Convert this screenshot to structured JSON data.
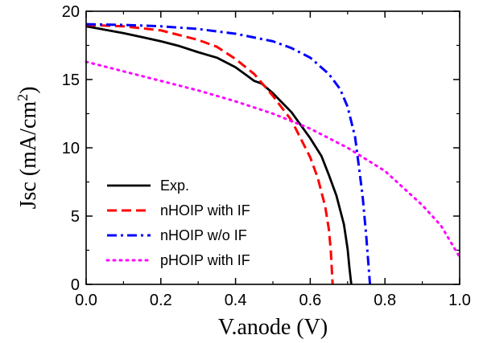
{
  "chart_data": {
    "type": "line",
    "xlabel": "V.anode (V)",
    "ylabel": "Jsc (mA/cm",
    "ylabel_sup": "2",
    "ylabel_close": ")",
    "xlim": [
      0.0,
      1.0
    ],
    "ylim": [
      0,
      20
    ],
    "x_ticks": [
      "0.0",
      "0.2",
      "0.4",
      "0.6",
      "0.8",
      "1.0"
    ],
    "y_ticks": [
      "0",
      "5",
      "10",
      "15",
      "20"
    ],
    "grid": false,
    "legend_position": "bottom-left",
    "series": [
      {
        "name": "Exp.",
        "color": "#000000",
        "style": "solid",
        "points": [
          [
            0.0,
            18.9
          ],
          [
            0.05,
            18.65
          ],
          [
            0.1,
            18.4
          ],
          [
            0.15,
            18.1
          ],
          [
            0.2,
            17.8
          ],
          [
            0.25,
            17.45
          ],
          [
            0.3,
            17.0
          ],
          [
            0.35,
            16.6
          ],
          [
            0.4,
            15.9
          ],
          [
            0.43,
            15.3
          ],
          [
            0.45,
            14.9
          ],
          [
            0.47,
            14.7
          ],
          [
            0.5,
            14.0
          ],
          [
            0.55,
            12.6
          ],
          [
            0.6,
            10.7
          ],
          [
            0.63,
            9.4
          ],
          [
            0.65,
            8.0
          ],
          [
            0.67,
            6.5
          ],
          [
            0.69,
            4.4
          ],
          [
            0.7,
            2.6
          ],
          [
            0.705,
            1.2
          ],
          [
            0.71,
            0.0
          ]
        ]
      },
      {
        "name": "nHOIP with IF",
        "color": "#ff0000",
        "style": "dashed",
        "points": [
          [
            0.0,
            19.0
          ],
          [
            0.1,
            18.9
          ],
          [
            0.2,
            18.6
          ],
          [
            0.3,
            17.9
          ],
          [
            0.35,
            17.4
          ],
          [
            0.4,
            16.5
          ],
          [
            0.45,
            15.4
          ],
          [
            0.5,
            13.8
          ],
          [
            0.55,
            12.0
          ],
          [
            0.6,
            9.3
          ],
          [
            0.62,
            7.8
          ],
          [
            0.64,
            5.7
          ],
          [
            0.65,
            4.0
          ],
          [
            0.655,
            2.5
          ],
          [
            0.66,
            0.0
          ]
        ]
      },
      {
        "name": "nHOIP w/o IF",
        "color": "#0000ff",
        "style": "dashdot",
        "points": [
          [
            0.0,
            19.05
          ],
          [
            0.1,
            19.0
          ],
          [
            0.2,
            18.9
          ],
          [
            0.3,
            18.7
          ],
          [
            0.4,
            18.35
          ],
          [
            0.5,
            17.8
          ],
          [
            0.55,
            17.3
          ],
          [
            0.6,
            16.6
          ],
          [
            0.65,
            15.4
          ],
          [
            0.68,
            14.3
          ],
          [
            0.7,
            13.0
          ],
          [
            0.72,
            10.8
          ],
          [
            0.74,
            6.5
          ],
          [
            0.75,
            3.5
          ],
          [
            0.76,
            0.0
          ]
        ]
      },
      {
        "name": "pHOIP with IF",
        "color": "#ff00ff",
        "style": "dotted",
        "points": [
          [
            0.0,
            16.3
          ],
          [
            0.1,
            15.6
          ],
          [
            0.2,
            14.9
          ],
          [
            0.3,
            14.2
          ],
          [
            0.4,
            13.4
          ],
          [
            0.5,
            12.5
          ],
          [
            0.6,
            11.4
          ],
          [
            0.7,
            10.0
          ],
          [
            0.8,
            8.3
          ],
          [
            0.9,
            5.8
          ],
          [
            0.95,
            4.3
          ],
          [
            1.0,
            2.0
          ]
        ]
      }
    ]
  }
}
